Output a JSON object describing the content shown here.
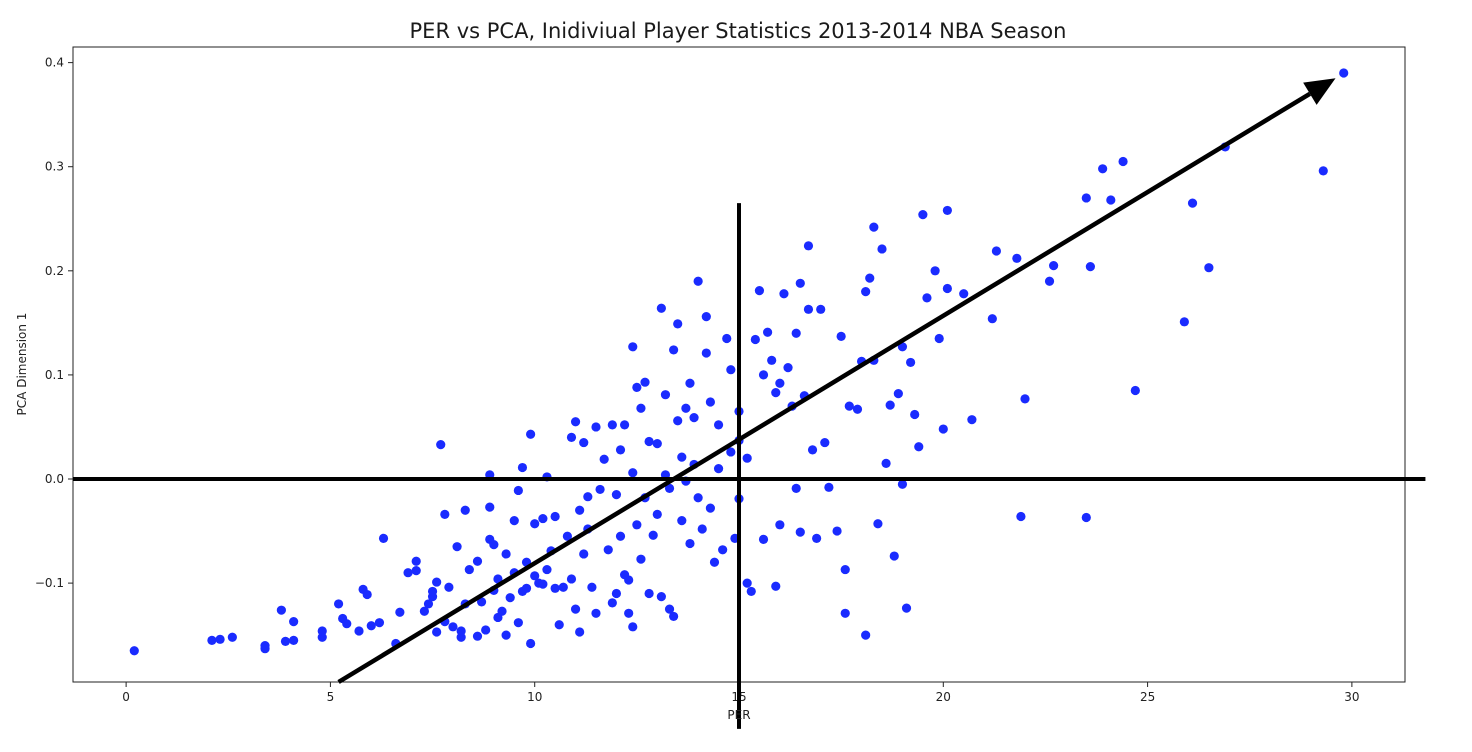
{
  "colors": {
    "points": "#1a2bff",
    "lines": "#000000",
    "frame": "#222222"
  },
  "chart_data": {
    "type": "scatter",
    "title": "PER vs PCA, Inidiviual Player Statistics 2013-2014 NBA Season",
    "xlabel": "PER",
    "ylabel": "PCA Dimension 1",
    "xlim": [
      -1.3,
      31.3
    ],
    "ylim": [
      -0.195,
      0.415
    ],
    "xticks": [
      0,
      5,
      10,
      15,
      20,
      25,
      30
    ],
    "xtick_labels": [
      "0",
      "5",
      "10",
      "15",
      "20",
      "25",
      "30"
    ],
    "yticks": [
      -0.1,
      0.0,
      0.1,
      0.2,
      0.3,
      0.4
    ],
    "ytick_labels": [
      "−0.1",
      "0.0",
      "0.1",
      "0.2",
      "0.3",
      "0.4"
    ],
    "grid": false,
    "legend": "none",
    "annotations": {
      "horizontal_line_y": 0.0,
      "vertical_line_x": 15.0,
      "vertical_line_y_range": [
        -0.24,
        0.265
      ],
      "horizontal_line_x_range": [
        -1.3,
        31.8
      ],
      "arrow": {
        "from": [
          5.2,
          -0.195
        ],
        "to": [
          29.6,
          0.385
        ]
      }
    },
    "series": [
      {
        "values": [
          [
            0.2,
            -0.165
          ],
          [
            2.1,
            -0.155
          ],
          [
            2.3,
            -0.154
          ],
          [
            2.6,
            -0.152
          ],
          [
            3.4,
            -0.163
          ],
          [
            3.4,
            -0.16
          ],
          [
            3.8,
            -0.126
          ],
          [
            3.9,
            -0.156
          ],
          [
            4.1,
            -0.155
          ],
          [
            4.1,
            -0.137
          ],
          [
            4.8,
            -0.152
          ],
          [
            4.8,
            -0.146
          ],
          [
            5.2,
            -0.12
          ],
          [
            5.3,
            -0.134
          ],
          [
            5.4,
            -0.139
          ],
          [
            5.7,
            -0.146
          ],
          [
            5.8,
            -0.106
          ],
          [
            5.9,
            -0.111
          ],
          [
            6.0,
            -0.141
          ],
          [
            6.2,
            -0.138
          ],
          [
            6.3,
            -0.057
          ],
          [
            6.6,
            -0.158
          ],
          [
            6.7,
            -0.128
          ],
          [
            6.9,
            -0.09
          ],
          [
            7.1,
            -0.088
          ],
          [
            7.1,
            -0.079
          ],
          [
            7.3,
            -0.127
          ],
          [
            7.4,
            -0.12
          ],
          [
            7.5,
            -0.113
          ],
          [
            7.5,
            -0.108
          ],
          [
            7.6,
            -0.099
          ],
          [
            7.6,
            -0.147
          ],
          [
            7.7,
            0.033
          ],
          [
            7.8,
            -0.137
          ],
          [
            7.8,
            -0.034
          ],
          [
            7.9,
            -0.104
          ],
          [
            8.0,
            -0.142
          ],
          [
            8.1,
            -0.065
          ],
          [
            8.2,
            -0.152
          ],
          [
            8.2,
            -0.146
          ],
          [
            8.3,
            -0.03
          ],
          [
            8.3,
            -0.12
          ],
          [
            8.4,
            -0.087
          ],
          [
            8.6,
            -0.151
          ],
          [
            8.6,
            -0.079
          ],
          [
            8.7,
            -0.118
          ],
          [
            8.8,
            -0.145
          ],
          [
            8.9,
            0.004
          ],
          [
            8.9,
            -0.027
          ],
          [
            8.9,
            -0.058
          ],
          [
            9.0,
            -0.063
          ],
          [
            9.0,
            -0.107
          ],
          [
            9.1,
            -0.133
          ],
          [
            9.1,
            -0.096
          ],
          [
            9.2,
            -0.127
          ],
          [
            9.3,
            -0.15
          ],
          [
            9.3,
            -0.072
          ],
          [
            9.4,
            -0.114
          ],
          [
            9.5,
            -0.09
          ],
          [
            9.5,
            -0.04
          ],
          [
            9.6,
            -0.011
          ],
          [
            9.6,
            -0.138
          ],
          [
            9.7,
            0.011
          ],
          [
            9.7,
            -0.108
          ],
          [
            9.8,
            -0.08
          ],
          [
            9.8,
            -0.105
          ],
          [
            9.9,
            -0.158
          ],
          [
            9.9,
            0.043
          ],
          [
            10.0,
            -0.093
          ],
          [
            10.0,
            -0.043
          ],
          [
            10.1,
            -0.1
          ],
          [
            10.2,
            -0.038
          ],
          [
            10.2,
            -0.101
          ],
          [
            10.3,
            -0.087
          ],
          [
            10.3,
            0.002
          ],
          [
            10.4,
            -0.069
          ],
          [
            10.5,
            -0.105
          ],
          [
            10.5,
            -0.036
          ],
          [
            10.6,
            -0.14
          ],
          [
            10.7,
            -0.104
          ],
          [
            10.8,
            -0.055
          ],
          [
            10.9,
            0.04
          ],
          [
            10.9,
            -0.096
          ],
          [
            11.0,
            0.055
          ],
          [
            11.0,
            -0.125
          ],
          [
            11.1,
            -0.03
          ],
          [
            11.1,
            -0.147
          ],
          [
            11.2,
            0.035
          ],
          [
            11.2,
            -0.072
          ],
          [
            11.3,
            -0.017
          ],
          [
            11.3,
            -0.048
          ],
          [
            11.4,
            -0.104
          ],
          [
            11.5,
            -0.129
          ],
          [
            11.5,
            0.05
          ],
          [
            11.6,
            -0.01
          ],
          [
            11.7,
            0.019
          ],
          [
            11.8,
            -0.068
          ],
          [
            11.9,
            -0.119
          ],
          [
            11.9,
            0.052
          ],
          [
            12.0,
            -0.015
          ],
          [
            12.0,
            -0.11
          ],
          [
            12.1,
            -0.055
          ],
          [
            12.1,
            0.028
          ],
          [
            12.2,
            0.052
          ],
          [
            12.2,
            -0.092
          ],
          [
            12.3,
            -0.129
          ],
          [
            12.3,
            -0.097
          ],
          [
            12.4,
            0.127
          ],
          [
            12.4,
            -0.142
          ],
          [
            12.4,
            0.006
          ],
          [
            12.5,
            0.088
          ],
          [
            12.5,
            -0.044
          ],
          [
            12.6,
            0.068
          ],
          [
            12.6,
            -0.077
          ],
          [
            12.7,
            0.093
          ],
          [
            12.7,
            -0.018
          ],
          [
            12.8,
            0.036
          ],
          [
            12.8,
            -0.11
          ],
          [
            12.9,
            -0.054
          ],
          [
            13.0,
            0.034
          ],
          [
            13.0,
            -0.034
          ],
          [
            13.1,
            0.164
          ],
          [
            13.1,
            -0.113
          ],
          [
            13.2,
            0.081
          ],
          [
            13.2,
            0.004
          ],
          [
            13.3,
            -0.125
          ],
          [
            13.3,
            -0.009
          ],
          [
            13.4,
            0.124
          ],
          [
            13.4,
            -0.132
          ],
          [
            13.5,
            0.149
          ],
          [
            13.5,
            0.056
          ],
          [
            13.6,
            0.021
          ],
          [
            13.6,
            -0.04
          ],
          [
            13.7,
            -0.002
          ],
          [
            13.7,
            0.068
          ],
          [
            13.8,
            0.092
          ],
          [
            13.8,
            -0.062
          ],
          [
            13.9,
            0.059
          ],
          [
            13.9,
            0.014
          ],
          [
            14.0,
            0.19
          ],
          [
            14.0,
            -0.018
          ],
          [
            14.1,
            -0.048
          ],
          [
            14.2,
            0.156
          ],
          [
            14.2,
            0.121
          ],
          [
            14.3,
            0.074
          ],
          [
            14.3,
            -0.028
          ],
          [
            14.4,
            -0.08
          ],
          [
            14.5,
            0.052
          ],
          [
            14.5,
            0.01
          ],
          [
            14.6,
            -0.068
          ],
          [
            14.7,
            0.135
          ],
          [
            14.8,
            0.105
          ],
          [
            14.8,
            0.026
          ],
          [
            14.9,
            -0.057
          ],
          [
            15.0,
            0.065
          ],
          [
            15.0,
            0.037
          ],
          [
            15.0,
            -0.019
          ],
          [
            15.2,
            0.02
          ],
          [
            15.2,
            -0.1
          ],
          [
            15.3,
            -0.108
          ],
          [
            15.4,
            0.134
          ],
          [
            15.5,
            0.181
          ],
          [
            15.6,
            0.1
          ],
          [
            15.6,
            -0.058
          ],
          [
            15.7,
            0.141
          ],
          [
            15.8,
            0.114
          ],
          [
            15.9,
            0.083
          ],
          [
            15.9,
            -0.103
          ],
          [
            16.0,
            0.092
          ],
          [
            16.0,
            -0.044
          ],
          [
            16.1,
            0.178
          ],
          [
            16.2,
            0.107
          ],
          [
            16.3,
            0.07
          ],
          [
            16.4,
            0.14
          ],
          [
            16.4,
            -0.009
          ],
          [
            16.5,
            0.188
          ],
          [
            16.5,
            -0.051
          ],
          [
            16.6,
            0.08
          ],
          [
            16.7,
            0.224
          ],
          [
            16.7,
            0.163
          ],
          [
            16.8,
            0.028
          ],
          [
            16.9,
            -0.057
          ],
          [
            17.0,
            0.163
          ],
          [
            17.1,
            0.035
          ],
          [
            17.2,
            -0.008
          ],
          [
            17.4,
            -0.05
          ],
          [
            17.5,
            0.137
          ],
          [
            17.6,
            -0.087
          ],
          [
            17.6,
            -0.129
          ],
          [
            17.7,
            0.07
          ],
          [
            17.9,
            0.067
          ],
          [
            18.0,
            0.113
          ],
          [
            18.1,
            -0.15
          ],
          [
            18.1,
            0.18
          ],
          [
            18.2,
            0.193
          ],
          [
            18.3,
            0.242
          ],
          [
            18.3,
            0.114
          ],
          [
            18.4,
            -0.043
          ],
          [
            18.5,
            0.221
          ],
          [
            18.6,
            0.015
          ],
          [
            18.7,
            0.071
          ],
          [
            18.8,
            -0.074
          ],
          [
            18.9,
            0.082
          ],
          [
            19.0,
            0.127
          ],
          [
            19.0,
            -0.005
          ],
          [
            19.1,
            -0.124
          ],
          [
            19.2,
            0.112
          ],
          [
            19.3,
            0.062
          ],
          [
            19.4,
            0.031
          ],
          [
            19.5,
            0.254
          ],
          [
            19.6,
            0.174
          ],
          [
            19.8,
            0.2
          ],
          [
            19.9,
            0.135
          ],
          [
            20.0,
            0.048
          ],
          [
            20.1,
            0.258
          ],
          [
            20.1,
            0.183
          ],
          [
            20.5,
            0.178
          ],
          [
            20.7,
            0.057
          ],
          [
            21.2,
            0.154
          ],
          [
            21.3,
            0.219
          ],
          [
            21.8,
            0.212
          ],
          [
            21.9,
            -0.036
          ],
          [
            22.0,
            0.077
          ],
          [
            22.6,
            0.19
          ],
          [
            22.7,
            0.205
          ],
          [
            23.5,
            0.27
          ],
          [
            23.5,
            -0.037
          ],
          [
            23.6,
            0.204
          ],
          [
            23.9,
            0.298
          ],
          [
            24.1,
            0.268
          ],
          [
            24.4,
            0.305
          ],
          [
            24.7,
            0.085
          ],
          [
            25.9,
            0.151
          ],
          [
            26.1,
            0.265
          ],
          [
            26.5,
            0.203
          ],
          [
            26.9,
            0.319
          ],
          [
            29.3,
            0.296
          ],
          [
            29.8,
            0.39
          ]
        ]
      }
    ]
  }
}
